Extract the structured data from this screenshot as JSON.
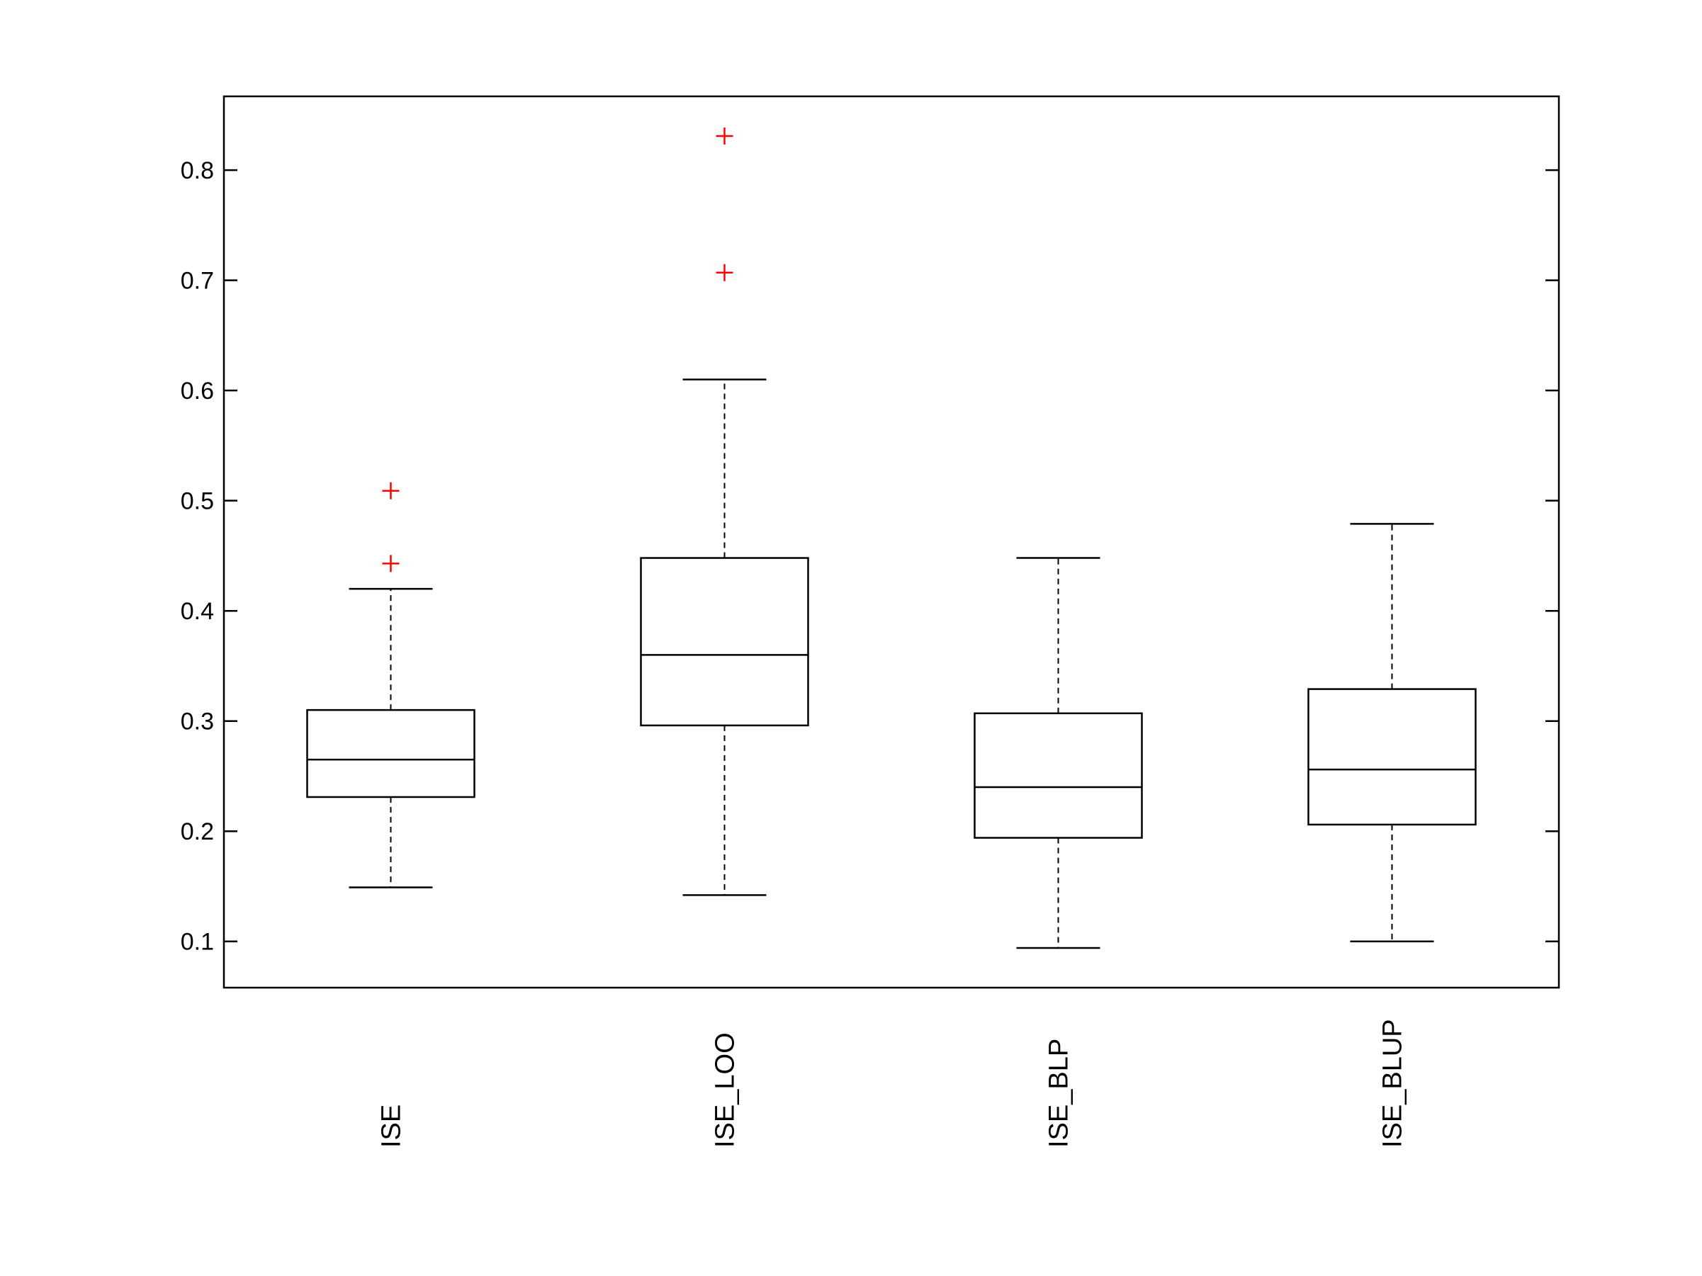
{
  "chart_data": {
    "type": "boxplot",
    "title": "",
    "xlabel": "",
    "ylabel": "",
    "ylim": [
      0.058,
      0.867
    ],
    "yticks": [
      0.1,
      0.2,
      0.3,
      0.4,
      0.5,
      0.6,
      0.7,
      0.8
    ],
    "ytick_labels": [
      "0.1",
      "0.2",
      "0.3",
      "0.4",
      "0.5",
      "0.6",
      "0.7",
      "0.8"
    ],
    "grid": false,
    "box_color": "#000000",
    "outlier_color": "#ff0000",
    "categories": [
      "ISE",
      "ISE_LOO",
      "ISE_BLP",
      "ISE_BLUP"
    ],
    "boxes": [
      {
        "name": "ISE",
        "whisker_low": 0.149,
        "q1": 0.231,
        "median": 0.265,
        "q3": 0.31,
        "whisker_high": 0.42,
        "outliers": [
          0.443,
          0.509
        ]
      },
      {
        "name": "ISE_LOO",
        "whisker_low": 0.142,
        "q1": 0.296,
        "median": 0.36,
        "q3": 0.448,
        "whisker_high": 0.61,
        "outliers": [
          0.707,
          0.831
        ]
      },
      {
        "name": "ISE_BLP",
        "whisker_low": 0.094,
        "q1": 0.194,
        "median": 0.24,
        "q3": 0.307,
        "whisker_high": 0.448,
        "outliers": []
      },
      {
        "name": "ISE_BLUP",
        "whisker_low": 0.1,
        "q1": 0.206,
        "median": 0.256,
        "q3": 0.329,
        "whisker_high": 0.479,
        "outliers": []
      }
    ]
  }
}
